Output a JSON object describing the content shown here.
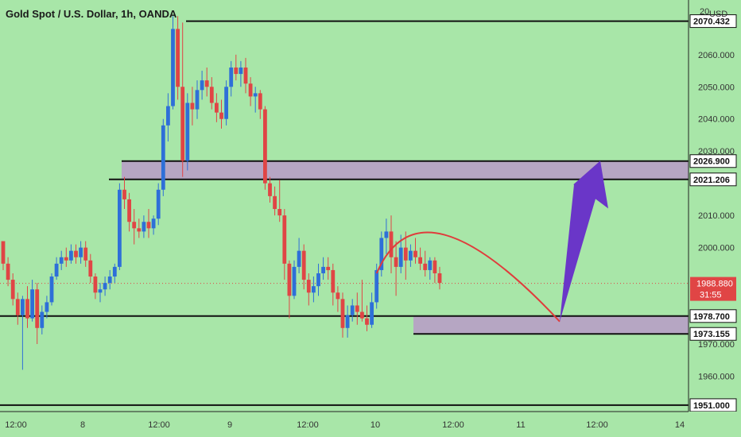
{
  "header": {
    "title": "Gold Spot / U.S. Dollar, 1h, OANDA",
    "currency": "USD",
    "currency_prefix": "20"
  },
  "colors": {
    "background": "#a8e6a8",
    "bull": "#2e6fd8",
    "bear": "#e04545",
    "zone": "#b89ac8",
    "level_line": "#111111",
    "arc": "#e03c3c",
    "arrow": "#6a36c8",
    "current_price_bg": "#e04545",
    "axis_line": "#222222"
  },
  "chart_data": {
    "type": "candlestick",
    "symbol": "Gold Spot / U.S. Dollar",
    "timeframe": "1h",
    "source": "OANDA",
    "ylim": [
      1949,
      2077
    ],
    "y_ticks": [
      2060.0,
      2050.0,
      2040.0,
      2030.0,
      2010.0,
      2000.0,
      1970.0,
      1960.0
    ],
    "x_ticks": [
      "12:00",
      "8",
      "12:00",
      "9",
      "12:00",
      "10",
      "12:00",
      "11",
      "12:00",
      "14"
    ],
    "levels": [
      {
        "label": "2070.432",
        "value": 2070.432
      },
      {
        "label": "2026.900",
        "value": 2026.9
      },
      {
        "label": "2021.206",
        "value": 2021.206
      },
      {
        "label": "1978.700",
        "value": 1978.7
      },
      {
        "label": "1973.155",
        "value": 1973.155
      },
      {
        "label": "1951.000",
        "value": 1951.0
      }
    ],
    "zones": [
      {
        "name": "resistance",
        "top": 2026.9,
        "bottom": 2021.206
      },
      {
        "name": "support",
        "top": 1978.7,
        "bottom": 1973.155
      }
    ],
    "current_price": {
      "label": "1988.880",
      "value": 1988.88,
      "countdown": "31:55"
    },
    "arc": {
      "start_price": 1992,
      "peak_price": 2004,
      "end_price": 1977
    },
    "arrow": {
      "from_price": 1977,
      "to_price": 2027
    },
    "candles": [
      [
        2002,
        2002,
        1993,
        1995
      ],
      [
        1995,
        1997,
        1988,
        1990
      ],
      [
        1990,
        1992,
        1982,
        1984
      ],
      [
        1984,
        1986,
        1976,
        1979
      ],
      [
        1979,
        1985,
        1962,
        1984
      ],
      [
        1984,
        1988,
        1975,
        1978
      ],
      [
        1978,
        1990,
        1977,
        1987
      ],
      [
        1987,
        1989,
        1970,
        1975
      ],
      [
        1975,
        1982,
        1973,
        1980
      ],
      [
        1980,
        1985,
        1978,
        1983
      ],
      [
        1983,
        1992,
        1982,
        1991
      ],
      [
        1991,
        1997,
        1990,
        1995
      ],
      [
        1995,
        1999,
        1993,
        1997
      ],
      [
        1997,
        2000,
        1994,
        1996
      ],
      [
        1996,
        2001,
        1995,
        1999
      ],
      [
        1999,
        2001,
        1995,
        1997
      ],
      [
        1997,
        2002,
        1995,
        2000
      ],
      [
        2000,
        2002,
        1994,
        1996
      ],
      [
        1996,
        1998,
        1989,
        1991
      ],
      [
        1991,
        1992,
        1984,
        1986
      ],
      [
        1986,
        1989,
        1983,
        1987
      ],
      [
        1987,
        1991,
        1985,
        1989
      ],
      [
        1989,
        1993,
        1987,
        1991
      ],
      [
        1991,
        1995,
        1989,
        1994
      ],
      [
        1994,
        2020,
        1993,
        2018
      ],
      [
        2018,
        2022,
        2012,
        2015
      ],
      [
        2015,
        2017,
        2005,
        2008
      ],
      [
        2008,
        2012,
        2001,
        2006
      ],
      [
        2006,
        2009,
        2003,
        2005
      ],
      [
        2005,
        2010,
        2003,
        2008
      ],
      [
        2008,
        2012,
        2003,
        2006
      ],
      [
        2006,
        2010,
        2004,
        2009
      ],
      [
        2009,
        2020,
        2007,
        2018
      ],
      [
        2018,
        2040,
        2016,
        2038
      ],
      [
        2038,
        2048,
        2033,
        2044
      ],
      [
        2044,
        2072,
        2043,
        2068
      ],
      [
        2068,
        2072,
        2046,
        2050
      ],
      [
        2050,
        2070,
        2022,
        2027
      ],
      [
        2027,
        2048,
        2024,
        2045
      ],
      [
        2045,
        2050,
        2038,
        2043
      ],
      [
        2043,
        2052,
        2040,
        2049
      ],
      [
        2049,
        2055,
        2046,
        2052
      ],
      [
        2052,
        2056,
        2047,
        2050
      ],
      [
        2050,
        2053,
        2043,
        2045
      ],
      [
        2045,
        2048,
        2039,
        2042
      ],
      [
        2042,
        2046,
        2037,
        2040
      ],
      [
        2040,
        2052,
        2038,
        2050
      ],
      [
        2050,
        2058,
        2047,
        2056
      ],
      [
        2056,
        2060,
        2052,
        2054
      ],
      [
        2054,
        2058,
        2050,
        2056
      ],
      [
        2056,
        2059,
        2048,
        2051
      ],
      [
        2051,
        2053,
        2044,
        2047
      ],
      [
        2047,
        2050,
        2042,
        2048
      ],
      [
        2048,
        2049,
        2040,
        2043
      ],
      [
        2043,
        2044,
        2018,
        2020
      ],
      [
        2020,
        2022,
        2014,
        2016
      ],
      [
        2016,
        2019,
        2010,
        2012
      ],
      [
        2012,
        2021,
        2008,
        2010
      ],
      [
        2010,
        2012,
        1990,
        1995
      ],
      [
        1995,
        1996,
        1978,
        1985
      ],
      [
        1985,
        1996,
        1984,
        1994
      ],
      [
        1994,
        2003,
        1992,
        1999
      ],
      [
        1999,
        2001,
        1987,
        1990
      ],
      [
        1990,
        1992,
        1982,
        1986
      ],
      [
        1986,
        1991,
        1983,
        1988
      ],
      [
        1988,
        1995,
        1985,
        1992
      ],
      [
        1992,
        1997,
        1990,
        1994
      ],
      [
        1994,
        1997,
        1990,
        1993
      ],
      [
        1993,
        1995,
        1982,
        1986
      ],
      [
        1986,
        1988,
        1980,
        1984
      ],
      [
        1984,
        1986,
        1972,
        1975
      ],
      [
        1975,
        1982,
        1972,
        1979
      ],
      [
        1979,
        1984,
        1977,
        1982
      ],
      [
        1982,
        1986,
        1976,
        1980
      ],
      [
        1980,
        1990,
        1977,
        1978
      ],
      [
        1978,
        1982,
        1974,
        1976
      ],
      [
        1976,
        1986,
        1975,
        1983
      ],
      [
        1983,
        1995,
        1981,
        1993
      ],
      [
        1993,
        2005,
        1991,
        2003
      ],
      [
        2003,
        2009,
        1998,
        2005
      ],
      [
        2005,
        2010,
        1992,
        1997
      ],
      [
        1997,
        2002,
        1985,
        1994
      ],
      [
        1994,
        2004,
        1992,
        2000
      ],
      [
        2000,
        2005,
        1990,
        1996
      ],
      [
        1996,
        2001,
        1994,
        1999
      ],
      [
        1999,
        2003,
        1995,
        1997
      ],
      [
        1997,
        2000,
        1993,
        1995
      ],
      [
        1995,
        1999,
        1991,
        1993
      ],
      [
        1993,
        1997,
        1990,
        1996
      ],
      [
        1996,
        1997,
        1989,
        1992
      ],
      [
        1992,
        1994,
        1987,
        1989
      ]
    ]
  }
}
